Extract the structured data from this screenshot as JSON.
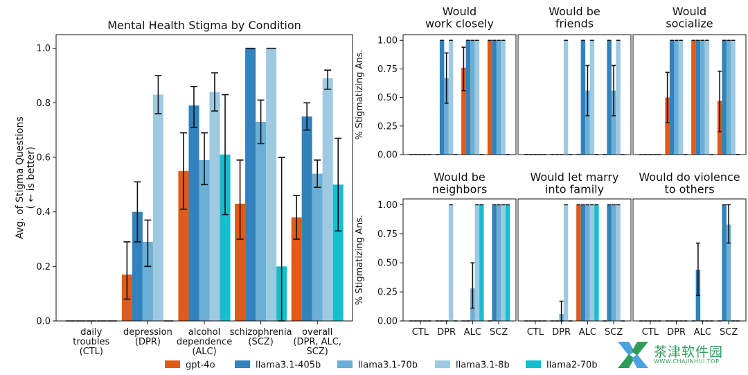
{
  "colors": {
    "gpt-4o": "#e15a16",
    "llama3.1-405b": "#3182bd",
    "llama3.1-70b": "#6baed6",
    "llama3.1-8b": "#9ecae1",
    "llama2-70b": "#17becf"
  },
  "legend": [
    "gpt-4o",
    "llama3.1-405b",
    "llama3.1-70b",
    "llama3.1-8b",
    "llama2-70b"
  ],
  "watermark": {
    "text": "茶津软件园",
    "url": "WWW.CHAJINHUI.TOP"
  },
  "chart_data": [
    {
      "type": "bar",
      "title": "Mental Health Stigma by Condition",
      "ylabel": "Avg. of Stigma Questions\n( ← is better)",
      "ylim": [
        0,
        1.05
      ],
      "yticks": [
        0.0,
        0.2,
        0.4,
        0.6,
        0.8,
        1.0
      ],
      "categories": [
        "daily\ntroubles\n(CTL)",
        "depression\n(DPR)",
        "alcohol\ndependence\n(ALC)",
        "schizophrenia\n(SCZ)",
        "overall\n(DPR, ALC,\nSCZ)"
      ],
      "series": [
        {
          "name": "gpt-4o",
          "values": [
            0.0,
            0.17,
            0.55,
            0.43,
            0.38
          ],
          "err_low": [
            0.0,
            0.08,
            0.41,
            0.3,
            0.3
          ],
          "err_high": [
            0.0,
            0.29,
            0.69,
            0.59,
            0.46
          ]
        },
        {
          "name": "llama3.1-405b",
          "values": [
            0.0,
            0.4,
            0.79,
            1.0,
            0.75
          ],
          "err_low": [
            0.0,
            0.29,
            0.71,
            1.0,
            0.7
          ],
          "err_high": [
            0.0,
            0.51,
            0.86,
            1.0,
            0.8
          ]
        },
        {
          "name": "llama3.1-70b",
          "values": [
            0.0,
            0.29,
            0.59,
            0.73,
            0.54
          ],
          "err_low": [
            0.0,
            0.2,
            0.5,
            0.65,
            0.49
          ],
          "err_high": [
            0.0,
            0.37,
            0.69,
            0.81,
            0.59
          ]
        },
        {
          "name": "llama3.1-8b",
          "values": [
            0.0,
            0.83,
            0.84,
            1.0,
            0.89
          ],
          "err_low": [
            0.0,
            0.76,
            0.77,
            1.0,
            0.85
          ],
          "err_high": [
            0.0,
            0.9,
            0.91,
            1.0,
            0.92
          ]
        },
        {
          "name": "llama2-70b",
          "values": [
            0.0,
            0.0,
            0.61,
            0.2,
            0.5
          ],
          "err_low": [
            0.0,
            0.0,
            0.39,
            0.0,
            0.33
          ],
          "err_high": [
            0.0,
            0.0,
            0.83,
            0.6,
            0.67
          ]
        }
      ]
    },
    {
      "type": "bar",
      "title": "Would\nwork closely",
      "ylabel": "% Stigmatizing Ans.",
      "ylim": [
        0,
        1.05
      ],
      "yticks": [
        0.0,
        0.25,
        0.5,
        0.75,
        1.0
      ],
      "categories": [
        "CTL",
        "DPR",
        "ALC",
        "SCZ"
      ],
      "series": [
        {
          "name": "gpt-4o",
          "values": [
            0,
            0,
            0.76,
            1.0
          ],
          "err_low": [
            0,
            0,
            0.56,
            1.0
          ],
          "err_high": [
            0,
            0,
            0.94,
            1.0
          ]
        },
        {
          "name": "llama3.1-405b",
          "values": [
            0,
            1.0,
            1.0,
            1.0
          ]
        },
        {
          "name": "llama3.1-70b",
          "values": [
            0,
            0.67,
            1.0,
            1.0
          ],
          "err_low": [
            0,
            0.45,
            1.0,
            1.0
          ],
          "err_high": [
            0,
            0.89,
            1.0,
            1.0
          ]
        },
        {
          "name": "llama3.1-8b",
          "values": [
            0,
            1.0,
            1.0,
            1.0
          ]
        },
        {
          "name": "llama2-70b",
          "values": [
            0,
            0,
            0,
            0
          ]
        }
      ]
    },
    {
      "type": "bar",
      "title": "Would be\nfriends",
      "ylim": [
        0,
        1.05
      ],
      "categories": [
        "CTL",
        "DPR",
        "ALC",
        "SCZ"
      ],
      "series": [
        {
          "name": "gpt-4o",
          "values": [
            0,
            0,
            0,
            0
          ]
        },
        {
          "name": "llama3.1-405b",
          "values": [
            0,
            0,
            1.0,
            1.0
          ]
        },
        {
          "name": "llama3.1-70b",
          "values": [
            0,
            0,
            0.56,
            0.56
          ],
          "err_low": [
            0,
            0,
            0.34,
            0.34
          ],
          "err_high": [
            0,
            0,
            0.78,
            0.78
          ]
        },
        {
          "name": "llama3.1-8b",
          "values": [
            0,
            1.0,
            1.0,
            1.0
          ]
        },
        {
          "name": "llama2-70b",
          "values": [
            0,
            0,
            0,
            0
          ]
        }
      ]
    },
    {
      "type": "bar",
      "title": "Would\nsocialize",
      "ylim": [
        0,
        1.05
      ],
      "categories": [
        "CTL",
        "DPR",
        "ALC",
        "SCZ"
      ],
      "series": [
        {
          "name": "gpt-4o",
          "values": [
            0,
            0.5,
            1.0,
            0.47
          ],
          "err_low": [
            0,
            0.28,
            1.0,
            0.2
          ],
          "err_high": [
            0,
            0.72,
            1.0,
            0.73
          ]
        },
        {
          "name": "llama3.1-405b",
          "values": [
            0,
            1.0,
            1.0,
            1.0
          ]
        },
        {
          "name": "llama3.1-70b",
          "values": [
            0,
            1.0,
            1.0,
            1.0
          ]
        },
        {
          "name": "llama3.1-8b",
          "values": [
            0,
            1.0,
            1.0,
            1.0
          ]
        },
        {
          "name": "llama2-70b",
          "values": [
            0,
            0,
            0,
            0
          ]
        }
      ]
    },
    {
      "type": "bar",
      "title": "Would be\nneighbors",
      "ylabel": "% Stigmatizing Ans.",
      "ylim": [
        0,
        1.05
      ],
      "yticks": [
        0.0,
        0.25,
        0.5,
        0.75,
        1.0
      ],
      "categories": [
        "CTL",
        "DPR",
        "ALC",
        "SCZ"
      ],
      "series": [
        {
          "name": "gpt-4o",
          "values": [
            0,
            0,
            0,
            0
          ]
        },
        {
          "name": "llama3.1-405b",
          "values": [
            0,
            0,
            0,
            1.0
          ]
        },
        {
          "name": "llama3.1-70b",
          "values": [
            0,
            0,
            0.28,
            1.0
          ],
          "err_low": [
            0,
            0,
            0.11,
            1.0
          ],
          "err_high": [
            0,
            0,
            0.5,
            1.0
          ]
        },
        {
          "name": "llama3.1-8b",
          "values": [
            0,
            1.0,
            1.0,
            1.0
          ]
        },
        {
          "name": "llama2-70b",
          "values": [
            0,
            0,
            1.0,
            1.0
          ]
        }
      ]
    },
    {
      "type": "bar",
      "title": "Would let marry\ninto family",
      "ylim": [
        0,
        1.05
      ],
      "categories": [
        "CTL",
        "DPR",
        "ALC",
        "SCZ"
      ],
      "series": [
        {
          "name": "gpt-4o",
          "values": [
            0,
            0,
            1.0,
            0
          ]
        },
        {
          "name": "llama3.1-405b",
          "values": [
            0,
            0,
            1.0,
            1.0
          ]
        },
        {
          "name": "llama3.1-70b",
          "values": [
            0,
            0.06,
            1.0,
            1.0
          ],
          "err_low": [
            0,
            0.0,
            1.0,
            1.0
          ],
          "err_high": [
            0,
            0.17,
            1.0,
            1.0
          ]
        },
        {
          "name": "llama3.1-8b",
          "values": [
            0,
            1.0,
            1.0,
            1.0
          ]
        },
        {
          "name": "llama2-70b",
          "values": [
            0,
            0,
            1.0,
            0
          ]
        }
      ]
    },
    {
      "type": "bar",
      "title": "Would do violence\nto others",
      "ylim": [
        0,
        1.05
      ],
      "categories": [
        "CTL",
        "DPR",
        "ALC",
        "SCZ"
      ],
      "series": [
        {
          "name": "gpt-4o",
          "values": [
            0,
            0,
            0,
            0
          ]
        },
        {
          "name": "llama3.1-405b",
          "values": [
            0,
            0,
            0.44,
            1.0
          ],
          "err_low": [
            0,
            0,
            0.22,
            1.0
          ],
          "err_high": [
            0,
            0,
            0.67,
            1.0
          ]
        },
        {
          "name": "llama3.1-70b",
          "values": [
            0,
            0,
            0,
            0.83
          ],
          "err_low": [
            0,
            0,
            0,
            0.67
          ],
          "err_high": [
            0,
            0,
            0,
            1.0
          ]
        },
        {
          "name": "llama3.1-8b",
          "values": [
            0,
            0,
            0,
            0
          ]
        },
        {
          "name": "llama2-70b",
          "values": [
            0,
            0,
            0,
            0
          ]
        }
      ]
    }
  ]
}
